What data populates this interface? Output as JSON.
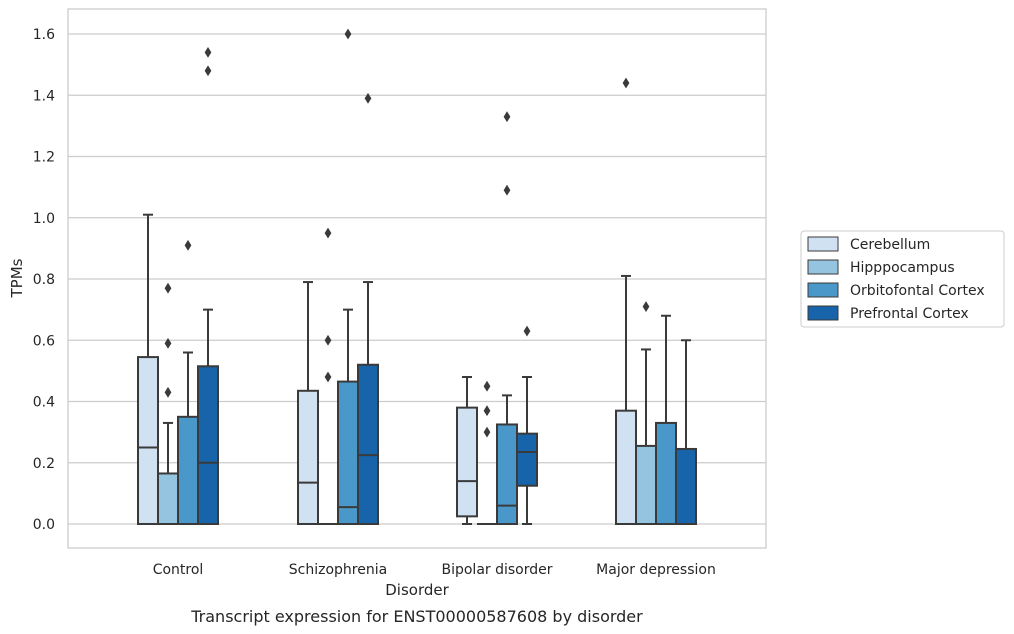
{
  "chart_data": {
    "type": "box",
    "caption": "Transcript expression for ENST00000587608 by disorder",
    "xlabel": "Disorder",
    "ylabel": "TPMs",
    "ylim": [
      -0.08,
      1.68
    ],
    "yticks": [
      "0.0",
      "0.2",
      "0.4",
      "0.6",
      "0.8",
      "1.0",
      "1.2",
      "1.4",
      "1.6"
    ],
    "grid": true,
    "legend_position": "right",
    "categories": [
      "Control",
      "Schizophrenia",
      "Bipolar disorder",
      "Major depression"
    ],
    "series": [
      {
        "name": "Cerebellum",
        "color": "#d0e1f2",
        "boxes": [
          {
            "whisker_low": 0.0,
            "q1": 0.0,
            "median": 0.25,
            "q3": 0.545,
            "whisker_high": 1.01,
            "outliers": []
          },
          {
            "whisker_low": 0.0,
            "q1": 0.0,
            "median": 0.135,
            "q3": 0.435,
            "whisker_high": 0.79,
            "outliers": []
          },
          {
            "whisker_low": 0.0,
            "q1": 0.025,
            "median": 0.14,
            "q3": 0.38,
            "whisker_high": 0.48,
            "outliers": []
          },
          {
            "whisker_low": 0.0,
            "q1": 0.0,
            "median": 0.0,
            "q3": 0.37,
            "whisker_high": 0.81,
            "outliers": [
              1.44
            ]
          }
        ]
      },
      {
        "name": "Hipppocampus",
        "color": "#94c4df",
        "boxes": [
          {
            "whisker_low": 0.0,
            "q1": 0.0,
            "median": 0.0,
            "q3": 0.165,
            "whisker_high": 0.33,
            "outliers": [
              0.43,
              0.59,
              0.77
            ]
          },
          {
            "whisker_low": 0.0,
            "q1": 0.0,
            "median": 0.0,
            "q3": 0.0,
            "whisker_high": 0.0,
            "outliers": [
              0.48,
              0.6,
              0.95
            ]
          },
          {
            "whisker_low": 0.0,
            "q1": 0.0,
            "median": 0.0,
            "q3": 0.0,
            "whisker_high": 0.0,
            "outliers": [
              0.3,
              0.37,
              0.45
            ]
          },
          {
            "whisker_low": 0.0,
            "q1": 0.0,
            "median": 0.0,
            "q3": 0.255,
            "whisker_high": 0.57,
            "outliers": [
              0.71
            ]
          }
        ]
      },
      {
        "name": "Orbitofontal Cortex",
        "color": "#4a98c9",
        "boxes": [
          {
            "whisker_low": 0.0,
            "q1": 0.0,
            "median": 0.0,
            "q3": 0.35,
            "whisker_high": 0.56,
            "outliers": [
              0.91
            ]
          },
          {
            "whisker_low": 0.0,
            "q1": 0.0,
            "median": 0.055,
            "q3": 0.465,
            "whisker_high": 0.7,
            "outliers": [
              1.6
            ]
          },
          {
            "whisker_low": 0.0,
            "q1": 0.0,
            "median": 0.06,
            "q3": 0.325,
            "whisker_high": 0.42,
            "outliers": [
              1.09,
              1.33
            ]
          },
          {
            "whisker_low": 0.0,
            "q1": 0.0,
            "median": 0.0,
            "q3": 0.33,
            "whisker_high": 0.68,
            "outliers": []
          }
        ]
      },
      {
        "name": "Prefrontal Cortex",
        "color": "#1764ab",
        "boxes": [
          {
            "whisker_low": 0.0,
            "q1": 0.0,
            "median": 0.2,
            "q3": 0.515,
            "whisker_high": 0.7,
            "outliers": [
              1.48,
              1.54
            ]
          },
          {
            "whisker_low": 0.0,
            "q1": 0.0,
            "median": 0.225,
            "q3": 0.52,
            "whisker_high": 0.79,
            "outliers": [
              1.39
            ]
          },
          {
            "whisker_low": 0.0,
            "q1": 0.125,
            "median": 0.235,
            "q3": 0.295,
            "whisker_high": 0.48,
            "outliers": [
              0.63
            ]
          },
          {
            "whisker_low": 0.0,
            "q1": 0.0,
            "median": 0.0,
            "q3": 0.245,
            "whisker_high": 0.6,
            "outliers": []
          }
        ]
      }
    ]
  }
}
